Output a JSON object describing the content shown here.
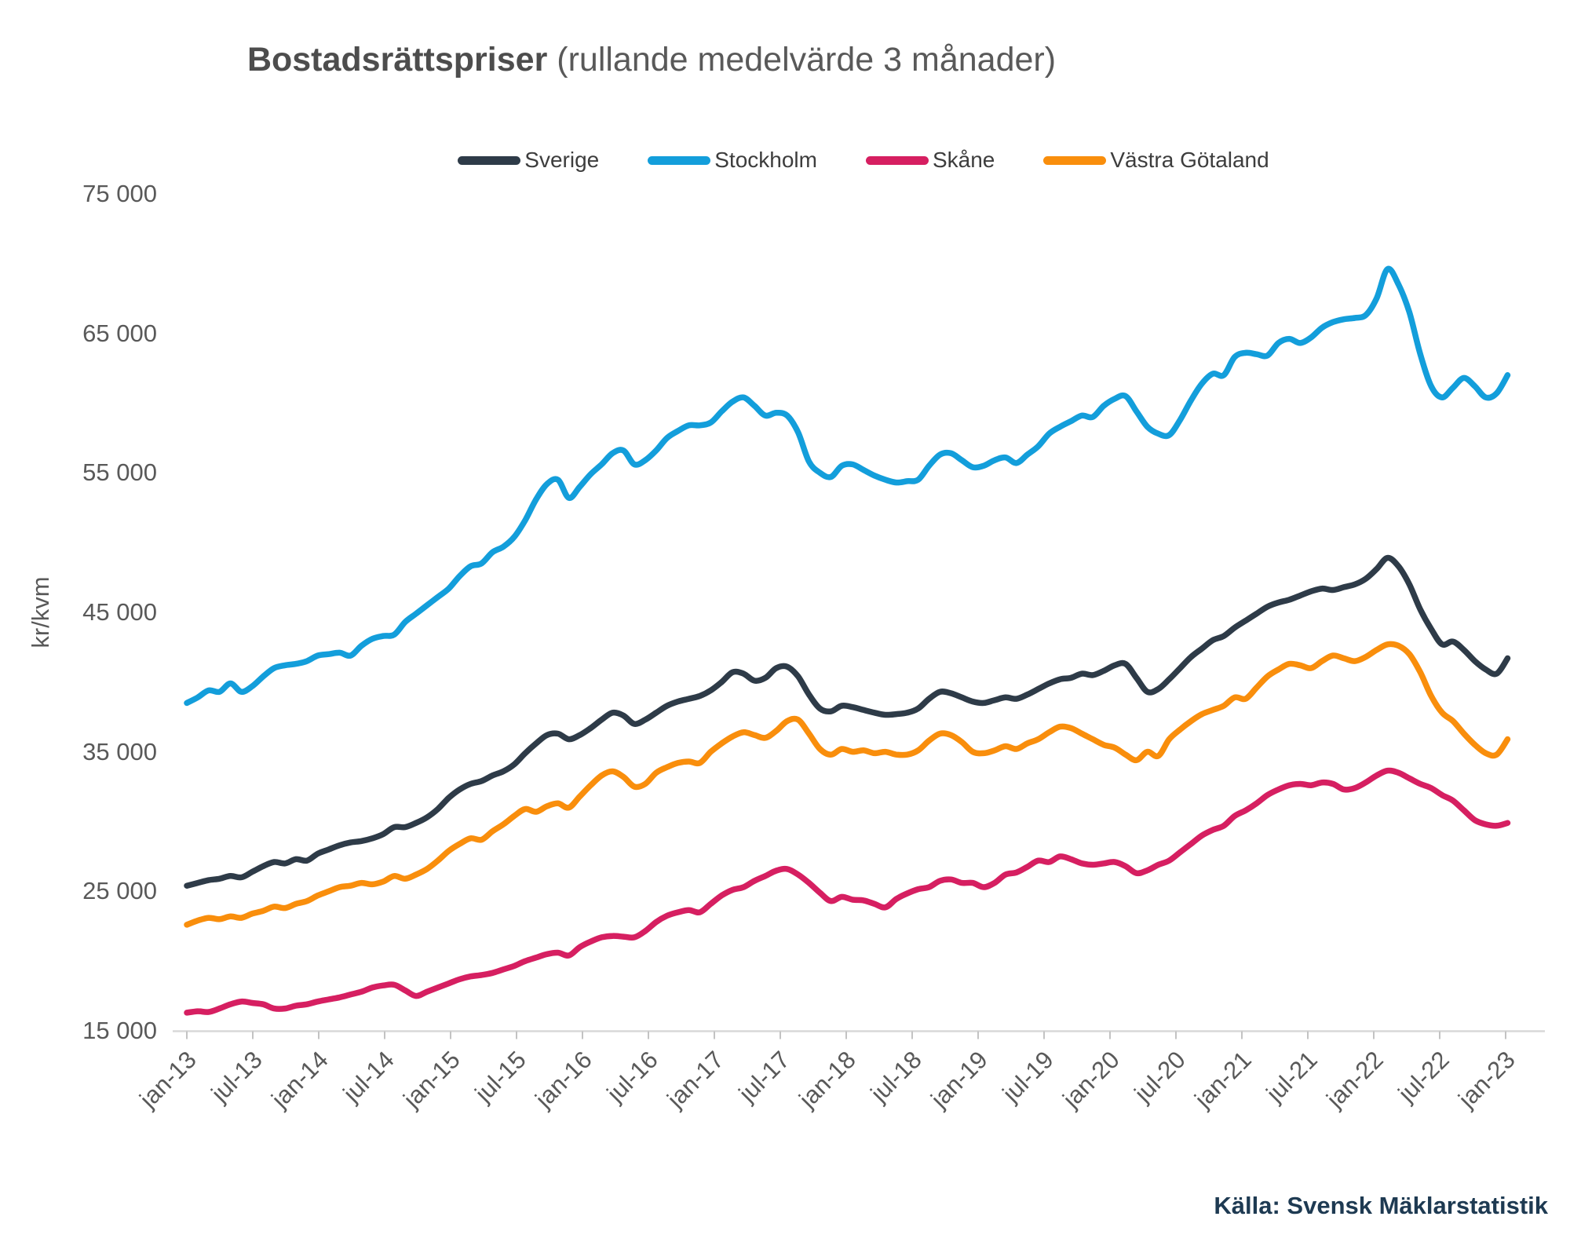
{
  "title": {
    "bold": "Bostadsrättspriser",
    "regular": " (rullande medelvärde 3 månader)"
  },
  "source": "Källa: Svensk Mäklarstatistik",
  "axes": {
    "y_label": "kr/kvm",
    "y_ticks": [
      {
        "label": "75 000",
        "value": 75000
      },
      {
        "label": "65 000",
        "value": 65000
      },
      {
        "label": "55 000",
        "value": 55000
      },
      {
        "label": "45 000",
        "value": 45000
      },
      {
        "label": "35 000",
        "value": 35000
      },
      {
        "label": "25 000",
        "value": 25000
      },
      {
        "label": "15 000",
        "value": 15000
      }
    ],
    "x_tick_labels": [
      "jan-13",
      "jul-13",
      "jan-14",
      "jul-14",
      "jan-15",
      "jul-15",
      "jan-16",
      "jul-16",
      "jan-17",
      "jul-17",
      "jan-18",
      "jul-18",
      "jan-19",
      "jul-19",
      "jan-20",
      "jul-20",
      "jan-21",
      "jul-21",
      "jan-22",
      "jul-22",
      "jan-23"
    ]
  },
  "chart_data": {
    "type": "line",
    "title": "Bostadsrättspriser (rullande medelvärde 3 månader)",
    "xlabel": "",
    "ylabel": "kr/kvm",
    "ylim": [
      15000,
      75000
    ],
    "x_unit": "months, jan-13 through feb-23, one value per month",
    "legend_position": "top",
    "grid": false,
    "series": [
      {
        "name": "Sverige",
        "color": "#2e3b48",
        "values": [
          25400,
          25600,
          25800,
          25900,
          26100,
          26000,
          26400,
          26800,
          27100,
          27000,
          27300,
          27200,
          27700,
          28000,
          28300,
          28500,
          28600,
          28800,
          29100,
          29600,
          29600,
          29900,
          30300,
          30900,
          31700,
          32300,
          32700,
          32900,
          33300,
          33600,
          34100,
          34900,
          35600,
          36200,
          36300,
          35900,
          36200,
          36700,
          37300,
          37800,
          37600,
          37000,
          37300,
          37800,
          38300,
          38600,
          38800,
          39000,
          39400,
          40000,
          40700,
          40600,
          40100,
          40300,
          41000,
          41100,
          40400,
          39100,
          38100,
          37900,
          38300,
          38200,
          38000,
          37800,
          37650,
          37700,
          37800,
          38100,
          38800,
          39300,
          39200,
          38900,
          38600,
          38500,
          38700,
          38900,
          38800,
          39100,
          39500,
          39900,
          40200,
          40300,
          40600,
          40500,
          40800,
          41200,
          41300,
          40300,
          39300,
          39500,
          40200,
          41000,
          41800,
          42400,
          43000,
          43300,
          43900,
          44400,
          44900,
          45400,
          45700,
          45900,
          46200,
          46500,
          46700,
          46600,
          46800,
          47000,
          47400,
          48100,
          48900,
          48300,
          47000,
          45200,
          43800,
          42700,
          42900,
          42300,
          41500,
          40900,
          40600,
          41700
        ]
      },
      {
        "name": "Stockholm",
        "color": "#139edb",
        "values": [
          38500,
          38900,
          39400,
          39300,
          39900,
          39300,
          39700,
          40400,
          41000,
          41200,
          41300,
          41500,
          41900,
          42000,
          42100,
          41900,
          42600,
          43100,
          43300,
          43400,
          44300,
          44900,
          45500,
          46100,
          46700,
          47600,
          48300,
          48500,
          49300,
          49700,
          50400,
          51600,
          53100,
          54200,
          54500,
          53200,
          54000,
          54900,
          55600,
          56400,
          56600,
          55600,
          55900,
          56600,
          57500,
          58000,
          58400,
          58400,
          58600,
          59400,
          60100,
          60400,
          59800,
          59100,
          59300,
          59100,
          57900,
          55800,
          55000,
          54700,
          55500,
          55600,
          55200,
          54800,
          54500,
          54300,
          54400,
          54500,
          55500,
          56300,
          56400,
          55900,
          55400,
          55500,
          55900,
          56100,
          55700,
          56300,
          56900,
          57800,
          58300,
          58700,
          59100,
          59000,
          59800,
          60300,
          60500,
          59400,
          58300,
          57800,
          57700,
          58800,
          60200,
          61400,
          62100,
          62000,
          63300,
          63600,
          63500,
          63400,
          64300,
          64600,
          64300,
          64700,
          65400,
          65800,
          66000,
          66100,
          66300,
          67500,
          69600,
          68500,
          66500,
          63500,
          61200,
          60400,
          61100,
          61800,
          61200,
          60400,
          60700,
          62000
        ]
      },
      {
        "name": "Skåne",
        "color": "#d61f61",
        "values": [
          16300,
          16400,
          16350,
          16600,
          16900,
          17100,
          17000,
          16900,
          16600,
          16600,
          16800,
          16900,
          17100,
          17250,
          17400,
          17600,
          17800,
          18100,
          18250,
          18300,
          17900,
          17500,
          17800,
          18100,
          18400,
          18700,
          18900,
          19000,
          19150,
          19400,
          19650,
          20000,
          20250,
          20500,
          20600,
          20400,
          21000,
          21400,
          21700,
          21800,
          21750,
          21700,
          22150,
          22800,
          23250,
          23500,
          23650,
          23500,
          24100,
          24700,
          25100,
          25300,
          25750,
          26100,
          26480,
          26600,
          26200,
          25600,
          24900,
          24300,
          24600,
          24400,
          24350,
          24100,
          23850,
          24450,
          24850,
          25150,
          25300,
          25750,
          25850,
          25600,
          25600,
          25300,
          25600,
          26200,
          26350,
          26750,
          27200,
          27100,
          27500,
          27300,
          27000,
          26900,
          27000,
          27100,
          26800,
          26300,
          26500,
          26900,
          27200,
          27800,
          28400,
          29000,
          29400,
          29700,
          30400,
          30800,
          31300,
          31900,
          32300,
          32600,
          32700,
          32600,
          32800,
          32700,
          32300,
          32400,
          32800,
          33300,
          33650,
          33500,
          33100,
          32700,
          32400,
          31900,
          31500,
          30800,
          30100,
          29800,
          29700,
          29900
        ]
      },
      {
        "name": "Västra Götaland",
        "color": "#f98e0c",
        "values": [
          22600,
          22900,
          23100,
          23000,
          23200,
          23100,
          23400,
          23600,
          23900,
          23800,
          24100,
          24300,
          24700,
          25000,
          25300,
          25400,
          25600,
          25500,
          25700,
          26100,
          25900,
          26200,
          26600,
          27200,
          27900,
          28400,
          28800,
          28700,
          29300,
          29800,
          30400,
          30900,
          30700,
          31100,
          31300,
          31000,
          31800,
          32600,
          33300,
          33600,
          33200,
          32500,
          32700,
          33500,
          33900,
          34200,
          34300,
          34200,
          35000,
          35600,
          36100,
          36400,
          36200,
          36000,
          36500,
          37200,
          37300,
          36300,
          35200,
          34800,
          35200,
          35000,
          35100,
          34900,
          35000,
          34800,
          34800,
          35100,
          35800,
          36300,
          36200,
          35700,
          35000,
          34900,
          35100,
          35400,
          35200,
          35600,
          35900,
          36400,
          36800,
          36700,
          36300,
          35900,
          35500,
          35300,
          34800,
          34400,
          35000,
          34700,
          35900,
          36600,
          37200,
          37700,
          38000,
          38300,
          38900,
          38800,
          39600,
          40400,
          40900,
          41300,
          41200,
          41000,
          41500,
          41900,
          41700,
          41500,
          41800,
          42300,
          42700,
          42600,
          42000,
          40700,
          39000,
          37800,
          37200,
          36300,
          35500,
          34900,
          34800,
          35900
        ]
      }
    ]
  }
}
